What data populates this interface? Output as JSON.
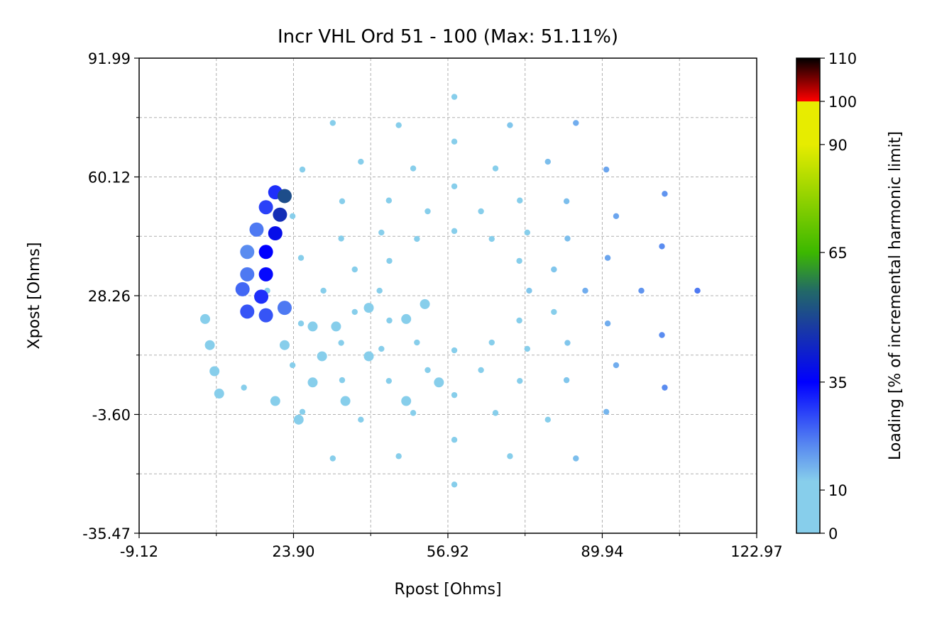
{
  "chart_data": {
    "type": "scatter",
    "title": "Incr VHL Ord 51 - 100 (Max: 51.11%)",
    "xlabel": "Rpost [Ohms]",
    "ylabel": "Xpost [Ohms]",
    "xlim": [
      -9.12,
      122.97
    ],
    "ylim": [
      -35.47,
      91.99
    ],
    "xticks": [
      "-9.12",
      "23.90",
      "56.92",
      "89.94",
      "122.97"
    ],
    "yticks": [
      "91.99",
      "60.12",
      "28.26",
      "-3.60",
      "-35.47"
    ],
    "x_minor_ticks": [
      7.39,
      40.41,
      73.43,
      106.46
    ],
    "y_minor_ticks": [
      76.06,
      44.19,
      12.33,
      -19.54
    ],
    "grid": true,
    "colorbar": {
      "label": "Loading [% of incremental harmonic limit]",
      "range": [
        0,
        110
      ],
      "ticks": [
        "0",
        "10",
        "35",
        "65",
        "90",
        "100",
        "110"
      ],
      "colors": [
        {
          "value": 0,
          "color": "#87CEEB"
        },
        {
          "value": 12,
          "color": "#87CEEB"
        },
        {
          "value": 20,
          "color": "#5A8CF0"
        },
        {
          "value": 35,
          "color": "#0000FF"
        },
        {
          "value": 48,
          "color": "#1A3CA0"
        },
        {
          "value": 56,
          "color": "#226868"
        },
        {
          "value": 65,
          "color": "#3CB800"
        },
        {
          "value": 90,
          "color": "#E6EC00"
        },
        {
          "value": 100,
          "color": "#E8EC00"
        },
        {
          "value": 100.01,
          "color": "#FF0000"
        },
        {
          "value": 110,
          "color": "#000000"
        }
      ]
    },
    "points_columns": [
      "R",
      "X",
      "loading"
    ],
    "points": [
      [
        110.3,
        29.6,
        22
      ],
      [
        103.3,
        55.6,
        19
      ],
      [
        84.3,
        74.6,
        16
      ],
      [
        58.3,
        81.6,
        12
      ],
      [
        32.3,
        74.6,
        10
      ],
      [
        13.3,
        3.6,
        8
      ],
      [
        32.3,
        -15.4,
        8
      ],
      [
        58.3,
        -22.4,
        8
      ],
      [
        84.3,
        -15.4,
        14
      ],
      [
        103.3,
        3.6,
        20
      ],
      [
        98.3,
        29.6,
        19
      ],
      [
        92.9,
        49.6,
        17
      ],
      [
        78.3,
        64.2,
        14
      ],
      [
        58.3,
        69.6,
        11
      ],
      [
        38.3,
        64.2,
        10
      ],
      [
        23.7,
        49.6,
        10
      ],
      [
        18.3,
        29.6,
        9
      ],
      [
        23.7,
        9.6,
        8
      ],
      [
        38.3,
        -5.0,
        8
      ],
      [
        58.3,
        -10.4,
        9
      ],
      [
        78.3,
        -5.0,
        12
      ],
      [
        92.9,
        9.6,
        16
      ],
      [
        86.3,
        29.6,
        16
      ],
      [
        82.5,
        43.6,
        14
      ],
      [
        72.3,
        53.8,
        12
      ],
      [
        58.3,
        57.6,
        11
      ],
      [
        44.3,
        53.8,
        10
      ],
      [
        34.1,
        43.6,
        10
      ],
      [
        30.3,
        29.6,
        8
      ],
      [
        34.1,
        15.6,
        8
      ],
      [
        44.3,
        5.4,
        8
      ],
      [
        58.3,
        1.6,
        9
      ],
      [
        72.3,
        5.4,
        11
      ],
      [
        82.5,
        15.6,
        13
      ],
      [
        74.3,
        29.6,
        13
      ],
      [
        72.2,
        37.6,
        12
      ],
      [
        66.3,
        43.5,
        11
      ],
      [
        58.3,
        45.6,
        10
      ],
      [
        50.3,
        43.5,
        10
      ],
      [
        44.4,
        37.6,
        9
      ],
      [
        42.3,
        29.6,
        8
      ],
      [
        44.4,
        21.6,
        8
      ],
      [
        50.3,
        15.7,
        8
      ],
      [
        58.3,
        13.6,
        9
      ],
      [
        66.3,
        15.7,
        10
      ],
      [
        72.2,
        21.6,
        11
      ],
      [
        102.7,
        41.5,
        20
      ],
      [
        90.8,
        62.1,
        17
      ],
      [
        70.2,
        74.0,
        13
      ],
      [
        46.4,
        74.0,
        10
      ],
      [
        25.8,
        62.1,
        10
      ],
      [
        25.8,
        -2.9,
        8
      ],
      [
        46.4,
        -14.8,
        8
      ],
      [
        70.2,
        -14.8,
        10
      ],
      [
        90.8,
        -2.9,
        15
      ],
      [
        102.7,
        17.7,
        20
      ],
      [
        91.1,
        38.4,
        17
      ],
      [
        82.3,
        53.6,
        14
      ],
      [
        67.1,
        62.4,
        12
      ],
      [
        49.5,
        62.4,
        10
      ],
      [
        34.3,
        53.6,
        10
      ],
      [
        25.5,
        38.4,
        9
      ],
      [
        25.5,
        20.8,
        8
      ],
      [
        34.3,
        5.6,
        8
      ],
      [
        49.5,
        -3.2,
        8
      ],
      [
        67.1,
        -3.2,
        10
      ],
      [
        82.3,
        5.6,
        13
      ],
      [
        91.1,
        20.8,
        16
      ],
      [
        79.6,
        35.3,
        13
      ],
      [
        73.9,
        45.2,
        12
      ],
      [
        64.0,
        50.9,
        11
      ],
      [
        52.6,
        50.9,
        10
      ],
      [
        42.7,
        45.2,
        9
      ],
      [
        37.0,
        35.3,
        8
      ],
      [
        37.0,
        23.9,
        8
      ],
      [
        42.7,
        14.0,
        8
      ],
      [
        52.6,
        8.3,
        8
      ],
      [
        64.0,
        8.3,
        9
      ],
      [
        73.9,
        14.0,
        11
      ],
      [
        79.6,
        23.9,
        12
      ],
      [
        28,
        20,
        6
      ],
      [
        28,
        5,
        6
      ],
      [
        35,
        0,
        6
      ],
      [
        40,
        25,
        6
      ],
      [
        48,
        22,
        6
      ],
      [
        48,
        0,
        6
      ],
      [
        55,
        5,
        6
      ],
      [
        30,
        12,
        6
      ],
      [
        22,
        15,
        5
      ],
      [
        20,
        0,
        5
      ],
      [
        25,
        -5,
        5
      ],
      [
        33,
        20,
        6
      ],
      [
        40,
        12,
        6
      ],
      [
        52,
        26,
        6
      ],
      [
        5,
        22,
        3
      ],
      [
        6,
        15,
        3
      ],
      [
        7,
        8,
        3
      ],
      [
        8,
        2,
        3
      ],
      [
        20,
        56,
        30
      ],
      [
        22,
        55,
        51.11
      ],
      [
        18,
        52,
        28
      ],
      [
        21,
        50,
        45
      ],
      [
        16,
        46,
        22
      ],
      [
        20,
        45,
        38
      ],
      [
        14,
        40,
        20
      ],
      [
        18,
        40,
        35
      ],
      [
        14,
        34,
        22
      ],
      [
        18,
        34,
        34
      ],
      [
        13,
        30,
        24
      ],
      [
        17,
        28,
        30
      ],
      [
        14,
        24,
        26
      ],
      [
        18,
        23,
        26
      ],
      [
        22,
        25,
        22
      ]
    ]
  }
}
